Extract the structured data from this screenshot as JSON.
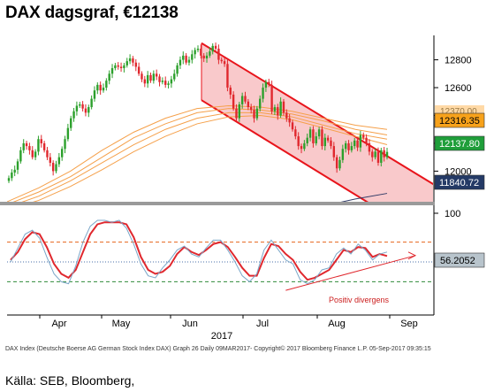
{
  "title": "DAX dagsgraf, €12138",
  "footer": "DAX Index (Deutsche Boerse AG German Stock Index DAX) Graph 26  Daily 09MAR2017-   Copyright© 2017 Bloomberg Finance L.P.   05-Sep-2017 09:35:15",
  "source": "Källa: SEB, Bloomberg,",
  "annotation": "Positiv divergens",
  "colors": {
    "candle_up": "#2ca02c",
    "candle_down": "#e0282e",
    "channel_line": "#e8141b",
    "channel_fill": "#f9c9cb",
    "ma_orange": "#f5a04a",
    "ma_navy": "#2f3a66",
    "rsi_red": "#e0282e",
    "rsi_blue": "#7aa6c8",
    "badge_orange": "#f7a21b",
    "badge_green": "#1f9e3a",
    "badge_navy": "#243a66",
    "badge_grey": "#b8c4cc"
  },
  "chart_data": [
    {
      "type": "candlestick",
      "panel": "price",
      "x_labels": [
        "Apr",
        "May",
        "Jun",
        "Jul",
        "Aug",
        "Sep"
      ],
      "x_axis_title": "2017",
      "y_ticks": [
        12000,
        12200,
        12400,
        12600,
        12800
      ],
      "ylim": [
        11780,
        12950
      ],
      "price_badges": [
        {
          "value": "12316.35",
          "color": "orange"
        },
        {
          "value": "12137.80",
          "color": "green"
        },
        {
          "value": "11840.72",
          "color": "navy"
        }
      ],
      "background_badge": "12370.00",
      "last_close": 12138,
      "series_close": [
        11950,
        11990,
        12010,
        12070,
        12150,
        12200,
        12180,
        12150,
        12100,
        12140,
        12230,
        12200,
        12150,
        12100,
        12060,
        12000,
        12050,
        12100,
        12160,
        12230,
        12310,
        12380,
        12430,
        12470,
        12480,
        12450,
        12420,
        12460,
        12520,
        12580,
        12620,
        12580,
        12600,
        12650,
        12700,
        12740,
        12760,
        12750,
        12740,
        12760,
        12790,
        12810,
        12780,
        12750,
        12700,
        12660,
        12630,
        12690,
        12650,
        12700,
        12680,
        12640,
        12650,
        12620,
        12630,
        12660,
        12700,
        12760,
        12800,
        12830,
        12780,
        12800,
        12840,
        12870,
        12880,
        12830,
        12810,
        12830,
        12860,
        12900,
        12880,
        12800,
        12790,
        12770,
        12600,
        12550,
        12450,
        12380,
        12480,
        12540,
        12500,
        12460,
        12440,
        12380,
        12450,
        12520,
        12600,
        12640,
        12620,
        12430,
        12460,
        12400,
        12500,
        12420,
        12380,
        12350,
        12300,
        12250,
        12180,
        12160,
        12200,
        12240,
        12300,
        12200,
        12250,
        12300,
        12180,
        12240,
        12220,
        12180,
        12100,
        12020,
        12080,
        12160,
        12200,
        12150,
        12180,
        12220,
        12170,
        12260,
        12240,
        12200,
        12140,
        12100,
        12140,
        12060,
        12150,
        12100,
        12138
      ],
      "channel": {
        "upper": [
          12920,
          11900
        ],
        "lower": [
          12510,
          11480
        ]
      },
      "moving_averages": [
        {
          "color": "orange",
          "values": [
            11780,
            11880,
            12000,
            12150,
            12280,
            12380,
            12450,
            12470,
            12460,
            12430,
            12380,
            12330,
            12300
          ]
        },
        {
          "color": "orange",
          "values": [
            11760,
            11850,
            11960,
            12100,
            12240,
            12340,
            12420,
            12450,
            12440,
            12410,
            12360,
            12300,
            12260
          ]
        },
        {
          "color": "orange",
          "values": [
            11740,
            11820,
            11930,
            12060,
            12190,
            12300,
            12380,
            12420,
            12420,
            12390,
            12330,
            12270,
            12230
          ]
        },
        {
          "color": "orange",
          "values": [
            11720,
            11790,
            11890,
            12010,
            12140,
            12250,
            12340,
            12390,
            12400,
            12370,
            12310,
            12250,
            12190
          ]
        },
        {
          "color": "navy",
          "values": [
            null,
            null,
            null,
            null,
            null,
            null,
            null,
            null,
            null,
            null,
            11750,
            11800,
            11840
          ]
        }
      ]
    },
    {
      "type": "line",
      "panel": "indicator",
      "y_ticks": [
        100
      ],
      "ylim": [
        0,
        100
      ],
      "current_value": "56.2052",
      "lines": {
        "overbought": 70,
        "midline": 50,
        "oversold": 30
      },
      "series": [
        {
          "color": "red",
          "values": [
            52,
            60,
            73,
            80,
            78,
            65,
            48,
            38,
            34,
            42,
            60,
            78,
            88,
            90,
            90,
            90,
            88,
            75,
            55,
            42,
            38,
            40,
            46,
            58,
            65,
            60,
            57,
            62,
            68,
            70,
            65,
            55,
            44,
            36,
            36,
            54,
            68,
            66,
            58,
            52,
            40,
            32,
            34,
            38,
            42,
            52,
            62,
            60,
            65,
            64,
            55,
            58,
            56
          ]
        },
        {
          "color": "blue",
          "values": [
            50,
            64,
            78,
            82,
            74,
            55,
            38,
            30,
            28,
            46,
            70,
            86,
            92,
            92,
            90,
            92,
            84,
            68,
            48,
            36,
            34,
            44,
            52,
            62,
            66,
            58,
            55,
            64,
            72,
            72,
            62,
            50,
            36,
            30,
            38,
            62,
            72,
            62,
            52,
            48,
            32,
            28,
            32,
            42,
            44,
            58,
            64,
            58,
            68,
            62,
            52,
            58,
            60
          ]
        }
      ],
      "divergence_arrow": [
        [
          38,
          32
        ],
        [
          52,
          60
        ]
      ]
    }
  ]
}
